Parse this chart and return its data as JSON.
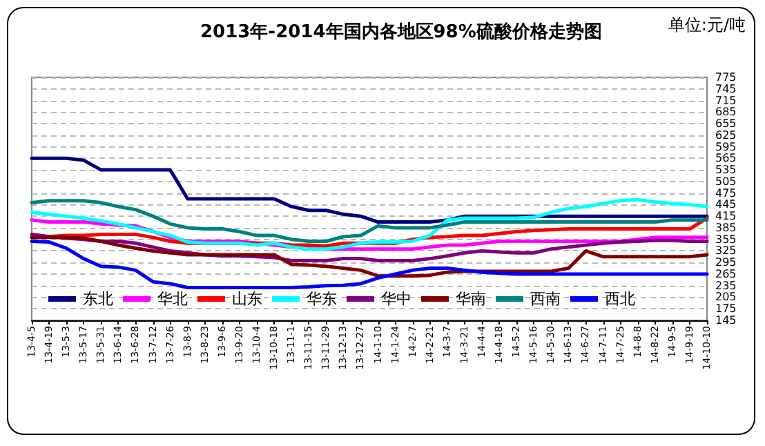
{
  "chart_data": {
    "type": "line",
    "title": "2013年-2014年国内各地区98%硫酸价格走势图",
    "annotations": [
      "单位:元/吨"
    ],
    "categories": [
      "13-4-5",
      "13-4-19",
      "13-5-3",
      "13-5-17",
      "13-5-31",
      "13-6-14",
      "13-6-28",
      "13-7-12",
      "13-7-26",
      "13-8-9",
      "13-8-23",
      "13-9-6",
      "13-9-20",
      "13-10-4",
      "13-10-18",
      "13-11-1",
      "13-11-15",
      "13-11-29",
      "13-12-13",
      "13-12-27",
      "14-1-10",
      "14-1-24",
      "14-2-7",
      "14-2-21",
      "14-3-7",
      "14-3-21",
      "14-4-4",
      "14-4-18",
      "14-5-2",
      "14-5-16",
      "14-5-30",
      "14-6-13",
      "14-6-27",
      "14-7-11",
      "14-7-25",
      "14-8-8",
      "14-8-22",
      "14-9-5",
      "14-9-19",
      "14-10-10"
    ],
    "series": [
      {
        "name": "东北",
        "color": "#000080",
        "values": [
          565,
          565,
          565,
          560,
          535,
          535,
          535,
          535,
          535,
          460,
          460,
          460,
          460,
          460,
          460,
          440,
          430,
          430,
          420,
          415,
          400,
          400,
          400,
          400,
          405,
          415,
          415,
          415,
          415,
          415,
          415,
          415,
          415,
          415,
          415,
          415,
          415,
          415,
          415,
          415
        ]
      },
      {
        "name": "华北",
        "color": "#ff00ff",
        "values": [
          405,
          400,
          400,
          400,
          395,
          392,
          390,
          375,
          360,
          350,
          350,
          350,
          350,
          345,
          340,
          335,
          335,
          330,
          330,
          330,
          330,
          330,
          330,
          335,
          340,
          340,
          345,
          350,
          350,
          350,
          350,
          350,
          350,
          350,
          350,
          355,
          360,
          360,
          360,
          360
        ]
      },
      {
        "name": "山东",
        "color": "#ff0000",
        "values": [
          360,
          362,
          365,
          365,
          368,
          368,
          368,
          360,
          350,
          345,
          345,
          345,
          345,
          345,
          345,
          340,
          340,
          338,
          345,
          345,
          345,
          345,
          355,
          360,
          362,
          365,
          365,
          370,
          375,
          378,
          380,
          382,
          382,
          382,
          382,
          382,
          382,
          382,
          382,
          410
        ]
      },
      {
        "name": "华东",
        "color": "#00ffff",
        "values": [
          425,
          420,
          415,
          410,
          403,
          395,
          385,
          375,
          365,
          348,
          345,
          345,
          345,
          340,
          345,
          335,
          330,
          330,
          335,
          345,
          348,
          348,
          350,
          365,
          405,
          410,
          410,
          410,
          410,
          412,
          425,
          435,
          440,
          448,
          455,
          458,
          452,
          448,
          445,
          440
        ]
      },
      {
        "name": "华中",
        "color": "#800080",
        "values": [
          368,
          362,
          358,
          355,
          350,
          350,
          345,
          335,
          325,
          320,
          315,
          312,
          312,
          310,
          308,
          300,
          300,
          300,
          305,
          305,
          300,
          300,
          300,
          305,
          312,
          320,
          325,
          322,
          320,
          320,
          330,
          335,
          340,
          345,
          348,
          350,
          352,
          352,
          350,
          350
        ]
      },
      {
        "name": "华南",
        "color": "#800000",
        "values": [
          360,
          360,
          360,
          358,
          350,
          340,
          332,
          325,
          320,
          315,
          315,
          315,
          315,
          315,
          315,
          290,
          288,
          285,
          280,
          275,
          260,
          260,
          260,
          262,
          270,
          272,
          272,
          272,
          272,
          272,
          272,
          280,
          325,
          310,
          310,
          310,
          310,
          310,
          310,
          315
        ]
      },
      {
        "name": "西南",
        "color": "#008080",
        "values": [
          450,
          455,
          455,
          455,
          450,
          440,
          432,
          415,
          395,
          385,
          382,
          382,
          375,
          365,
          365,
          355,
          350,
          350,
          362,
          365,
          390,
          385,
          385,
          385,
          392,
          400,
          400,
          400,
          400,
          400,
          400,
          400,
          400,
          400,
          400,
          400,
          400,
          405,
          405,
          405
        ]
      },
      {
        "name": "西北",
        "color": "#0000ff",
        "values": [
          350,
          348,
          332,
          305,
          285,
          283,
          275,
          245,
          240,
          230,
          230,
          230,
          230,
          230,
          230,
          230,
          232,
          235,
          236,
          240,
          255,
          265,
          275,
          280,
          280,
          275,
          270,
          267,
          265,
          265,
          265,
          265,
          265,
          265,
          265,
          265,
          265,
          265,
          265,
          265
        ]
      }
    ],
    "ylim": [
      145,
      775
    ],
    "yticks": [
      145,
      175,
      205,
      235,
      265,
      295,
      325,
      355,
      385,
      415,
      445,
      475,
      505,
      535,
      565,
      595,
      625,
      655,
      685,
      715,
      745,
      775
    ],
    "grid": "y",
    "legend": "bottom",
    "marker": "none",
    "line_style": "solid"
  }
}
